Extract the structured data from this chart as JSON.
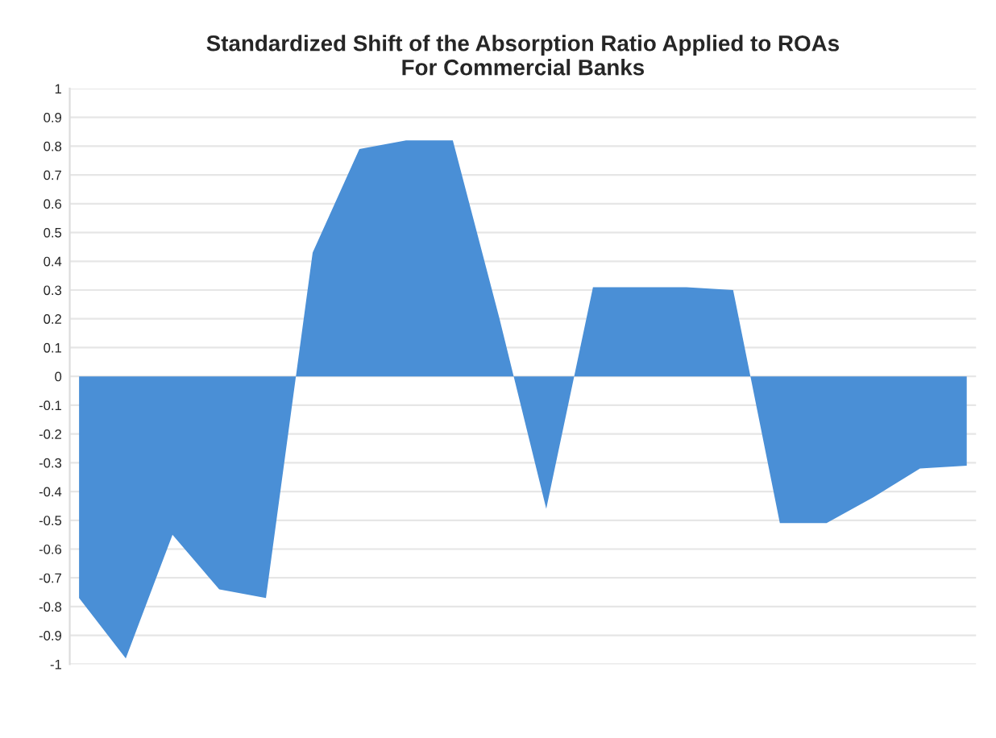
{
  "chart_data": {
    "type": "area",
    "title": "Standardized Shift of the Absorption Ratio Applied to ROAs\nFor Commercial Banks",
    "categories": [
      null,
      null,
      null,
      null,
      null,
      null,
      null,
      null,
      null,
      null,
      null,
      null,
      null,
      null,
      null,
      null,
      null,
      null,
      null,
      null
    ],
    "series": [
      {
        "color": "#4a8fd6",
        "values": [
          -0.77,
          -0.98,
          -0.55,
          -0.74,
          -0.77,
          0.43,
          0.79,
          0.82,
          0.82,
          0.2,
          -0.46,
          0.31,
          0.31,
          0.31,
          0.3,
          -0.51,
          -0.51,
          -0.42,
          -0.32,
          -0.31
        ]
      }
    ],
    "ylim": [
      -1,
      1
    ],
    "yticks": [
      -1,
      -0.9,
      -0.8,
      -0.7,
      -0.6,
      -0.5,
      -0.4,
      -0.3,
      -0.2,
      -0.1,
      0,
      0.1,
      0.2,
      0.3,
      0.4,
      0.5,
      0.6,
      0.7,
      0.8,
      0.9,
      1
    ],
    "grid": "y",
    "legend": false
  }
}
